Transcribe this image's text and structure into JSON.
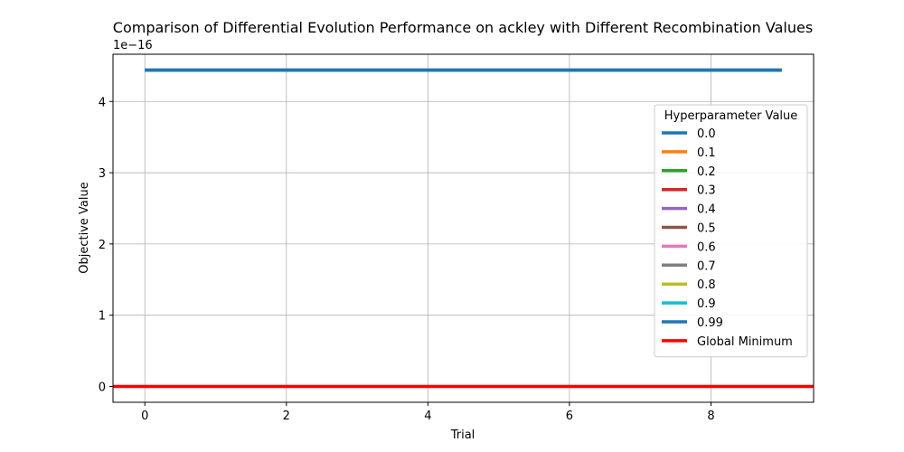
{
  "chart_data": {
    "type": "line",
    "title": "Comparison of Differential Evolution Performance on ackley with Different Recombination Values",
    "xlabel": "Trial",
    "ylabel": "Objective Value",
    "y_offset_label": "1e−16",
    "y_scale_factor": 1e-16,
    "xlim": [
      -0.45,
      9.45
    ],
    "ylim": [
      -0.222,
      4.663
    ],
    "x_ticks": [
      0,
      2,
      4,
      6,
      8
    ],
    "y_ticks": [
      0,
      1,
      2,
      3,
      4
    ],
    "x": [
      0,
      1,
      2,
      3,
      4,
      5,
      6,
      7,
      8,
      9
    ],
    "grid": true,
    "legend_title": "Hyperparameter Value",
    "legend_position": "center-right",
    "series": [
      {
        "name": "0.0",
        "color": "#1f77b4",
        "values": [
          4.44,
          4.44,
          4.44,
          4.44,
          4.44,
          4.44,
          4.44,
          4.44,
          4.44,
          4.44
        ]
      },
      {
        "name": "0.1",
        "color": "#ff7f0e",
        "values": [
          4.44,
          4.44,
          4.44,
          4.44,
          4.44,
          4.44,
          4.44,
          4.44,
          4.44,
          4.44
        ]
      },
      {
        "name": "0.2",
        "color": "#2ca02c",
        "values": [
          4.44,
          4.44,
          4.44,
          4.44,
          4.44,
          4.44,
          4.44,
          4.44,
          4.44,
          4.44
        ]
      },
      {
        "name": "0.3",
        "color": "#d62728",
        "values": [
          4.44,
          4.44,
          4.44,
          4.44,
          4.44,
          4.44,
          4.44,
          4.44,
          4.44,
          4.44
        ]
      },
      {
        "name": "0.4",
        "color": "#9467bd",
        "values": [
          4.44,
          4.44,
          4.44,
          4.44,
          4.44,
          4.44,
          4.44,
          4.44,
          4.44,
          4.44
        ]
      },
      {
        "name": "0.5",
        "color": "#8c564b",
        "values": [
          4.44,
          4.44,
          4.44,
          4.44,
          4.44,
          4.44,
          4.44,
          4.44,
          4.44,
          4.44
        ]
      },
      {
        "name": "0.6",
        "color": "#e377c2",
        "values": [
          4.44,
          4.44,
          4.44,
          4.44,
          4.44,
          4.44,
          4.44,
          4.44,
          4.44,
          4.44
        ]
      },
      {
        "name": "0.7",
        "color": "#7f7f7f",
        "values": [
          4.44,
          4.44,
          4.44,
          4.44,
          4.44,
          4.44,
          4.44,
          4.44,
          4.44,
          4.44
        ]
      },
      {
        "name": "0.8",
        "color": "#bcbd22",
        "values": [
          4.44,
          4.44,
          4.44,
          4.44,
          4.44,
          4.44,
          4.44,
          4.44,
          4.44,
          4.44
        ]
      },
      {
        "name": "0.9",
        "color": "#17becf",
        "values": [
          4.44,
          4.44,
          4.44,
          4.44,
          4.44,
          4.44,
          4.44,
          4.44,
          4.44,
          4.44
        ]
      },
      {
        "name": "0.99",
        "color": "#1f77b4",
        "values": [
          4.44,
          4.44,
          4.44,
          4.44,
          4.44,
          4.44,
          4.44,
          4.44,
          4.44,
          4.44
        ]
      }
    ],
    "reference_line": {
      "name": "Global Minimum",
      "color": "#ff0000",
      "value": 0
    }
  }
}
